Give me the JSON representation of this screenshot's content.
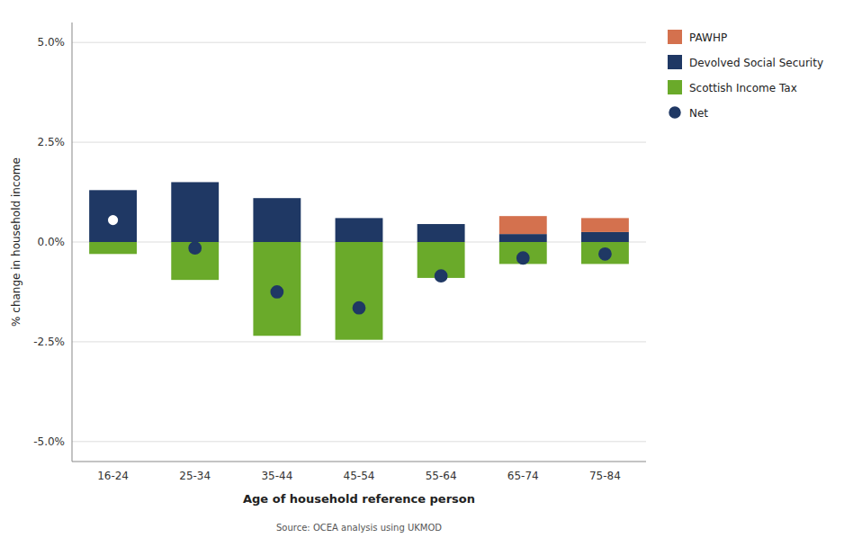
{
  "chart_data": {
    "type": "bar",
    "stacked": true,
    "categories": [
      "16-24",
      "25-34",
      "35-44",
      "45-54",
      "55-64",
      "65-74",
      "75-84"
    ],
    "series": [
      {
        "name": "PAWHP",
        "color": "#d4714e",
        "values": [
          0.0,
          0.0,
          0.0,
          0.0,
          0.0,
          0.45,
          0.35
        ]
      },
      {
        "name": "Devolved Social Security",
        "color": "#1f3864",
        "values": [
          1.3,
          1.5,
          1.1,
          0.6,
          0.45,
          0.2,
          0.25
        ]
      },
      {
        "name": "Scottish Income Tax",
        "color": "#6aaa2a",
        "values": [
          -0.3,
          -0.95,
          -2.35,
          -2.45,
          -0.9,
          -0.55,
          -0.55
        ]
      },
      {
        "name": "Net",
        "type": "scatter",
        "marker": "circle",
        "color": "#1f3864",
        "colors": [
          "#ffffff",
          "#1f3864",
          "#1f3864",
          "#1f3864",
          "#1f3864",
          "#1f3864",
          "#1f3864"
        ],
        "values": [
          0.55,
          -0.15,
          -1.25,
          -1.65,
          -0.85,
          -0.4,
          -0.3
        ]
      }
    ],
    "xlabel": "Age of household reference person",
    "ylabel": "% change in household income",
    "annotations": [
      "Source: OCEA analysis using UKMOD"
    ],
    "ylim": [
      -5.5,
      5.5
    ],
    "yticks": [
      {
        "value": -5.0,
        "label": "-5.0%"
      },
      {
        "value": -2.5,
        "label": "-2.5%"
      },
      {
        "value": 0.0,
        "label": "0.0%"
      },
      {
        "value": 2.5,
        "label": "2.5%"
      },
      {
        "value": 5.0,
        "label": "5.0%"
      }
    ],
    "grid": true,
    "legend": "right"
  }
}
